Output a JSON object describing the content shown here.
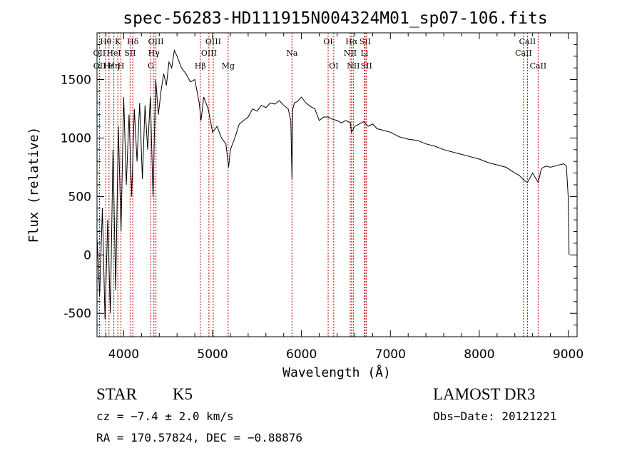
{
  "chart_data": {
    "type": "line",
    "title": "spec-56283-HD111915N004324M01_sp07-106.fits",
    "xlabel": "Wavelength (Å)",
    "ylabel": "Flux (relative)",
    "xlim": [
      3700,
      9100
    ],
    "ylim": [
      -700,
      1900
    ],
    "xticks": [
      4000,
      5000,
      6000,
      7000,
      8000,
      9000
    ],
    "yticks": [
      -500,
      0,
      500,
      1000,
      1500
    ],
    "series": [
      {
        "name": "flux",
        "x": [
          3700,
          3730,
          3760,
          3790,
          3820,
          3850,
          3880,
          3910,
          3940,
          3970,
          4000,
          4030,
          4060,
          4090,
          4120,
          4150,
          4180,
          4210,
          4240,
          4270,
          4300,
          4330,
          4360,
          4390,
          4420,
          4450,
          4480,
          4510,
          4540,
          4570,
          4600,
          4650,
          4700,
          4750,
          4800,
          4850,
          4870,
          4900,
          4950,
          5000,
          5050,
          5100,
          5150,
          5180,
          5200,
          5250,
          5300,
          5350,
          5400,
          5450,
          5500,
          5550,
          5600,
          5650,
          5700,
          5750,
          5800,
          5850,
          5880,
          5893,
          5900,
          5920,
          5950,
          6000,
          6050,
          6100,
          6150,
          6200,
          6250,
          6300,
          6350,
          6400,
          6450,
          6500,
          6550,
          6563,
          6600,
          6650,
          6700,
          6750,
          6800,
          6850,
          6900,
          6950,
          7000,
          7100,
          7200,
          7300,
          7400,
          7500,
          7600,
          7700,
          7800,
          7900,
          8000,
          8100,
          8200,
          8300,
          8400,
          8450,
          8500,
          8542,
          8600,
          8662,
          8700,
          8750,
          8800,
          8850,
          8900,
          8950,
          8980,
          9000,
          9010
        ],
        "y": [
          150,
          -350,
          400,
          -550,
          300,
          -500,
          900,
          -300,
          1100,
          200,
          1350,
          600,
          1200,
          500,
          1250,
          800,
          1300,
          650,
          1280,
          900,
          1350,
          500,
          1500,
          1200,
          1400,
          1550,
          1450,
          1650,
          1600,
          1750,
          1700,
          1600,
          1550,
          1480,
          1500,
          1300,
          1150,
          1350,
          1250,
          1050,
          1100,
          1000,
          950,
          750,
          900,
          1000,
          1120,
          1150,
          1180,
          1250,
          1230,
          1280,
          1260,
          1300,
          1290,
          1320,
          1280,
          1250,
          1150,
          650,
          1240,
          1300,
          1310,
          1350,
          1300,
          1270,
          1250,
          1150,
          1180,
          1180,
          1160,
          1150,
          1130,
          1150,
          1130,
          1050,
          1100,
          1120,
          1140,
          1100,
          1120,
          1080,
          1070,
          1060,
          1050,
          1010,
          990,
          980,
          950,
          930,
          900,
          880,
          860,
          840,
          820,
          790,
          770,
          750,
          700,
          680,
          640,
          620,
          700,
          620,
          740,
          760,
          750,
          760,
          770,
          780,
          760,
          500,
          0
        ]
      }
    ],
    "lines": [
      {
        "name": "Hθ",
        "x": 3798,
        "row": 0
      },
      {
        "name": "OII",
        "x": 3727,
        "row": 1
      },
      {
        "name": "OII",
        "x": 3729,
        "row": 2
      },
      {
        "name": "Hε",
        "x": 3835,
        "row": 2
      },
      {
        "name": "Hη",
        "x": 3889,
        "row": 2
      },
      {
        "name": "HeI",
        "x": 3889,
        "row": 1
      },
      {
        "name": "K",
        "x": 3934,
        "row": 0
      },
      {
        "name": "H",
        "x": 3969,
        "row": 2
      },
      {
        "name": "SII",
        "x": 4072,
        "row": 1
      },
      {
        "name": "Hδ",
        "x": 4102,
        "row": 0
      },
      {
        "name": "OIII",
        "x": 4363,
        "row": 0
      },
      {
        "name": "Hγ",
        "x": 4340,
        "row": 1
      },
      {
        "name": "G",
        "x": 4305,
        "row": 2
      },
      {
        "name": "Hβ",
        "x": 4861,
        "row": 2
      },
      {
        "name": "OIII",
        "x": 4959,
        "row": 1
      },
      {
        "name": "OIII",
        "x": 5007,
        "row": 0
      },
      {
        "name": "Mg",
        "x": 5175,
        "row": 2
      },
      {
        "name": "Na",
        "x": 5893,
        "row": 1
      },
      {
        "name": "OI",
        "x": 6300,
        "row": 0
      },
      {
        "name": "OI",
        "x": 6363,
        "row": 2
      },
      {
        "name": "Hα",
        "x": 6563,
        "row": 0
      },
      {
        "name": "NII",
        "x": 6548,
        "row": 1
      },
      {
        "name": "NII",
        "x": 6583,
        "row": 2
      },
      {
        "name": "SII",
        "x": 6716,
        "row": 0
      },
      {
        "name": "Li",
        "x": 6708,
        "row": 1
      },
      {
        "name": "SII",
        "x": 6731,
        "row": 2
      },
      {
        "name": "CaII",
        "x": 8498,
        "row": 1
      },
      {
        "name": "CaII",
        "x": 8542,
        "row": 0
      },
      {
        "name": "CaII",
        "x": 8662,
        "row": 2
      }
    ]
  },
  "info": {
    "class_label": "STAR",
    "subclass": "K5",
    "survey": "LAMOST DR3",
    "cz_text": "cz = −7.4 ± 2.0 km/s",
    "obs_date": "Obs−Date: 20121221",
    "radec_text": "RA = 170.57824, DEC =  −0.88876"
  }
}
